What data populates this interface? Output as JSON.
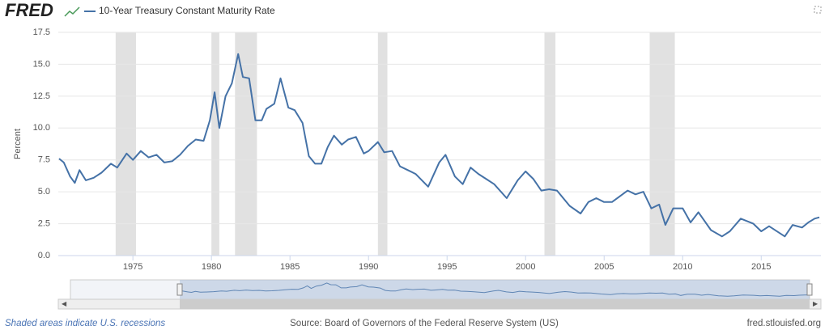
{
  "chart_data": {
    "type": "line",
    "logo": "FRED",
    "y_label": "Percent",
    "recession_note": "Shaded areas indicate U.S. recessions",
    "source": "Source: Board of Governors of the Federal Reserve System (US)",
    "site": "fred.stlouisfed.org",
    "series": [
      {
        "name": "10-Year Treasury Constant Maturity Rate",
        "color": "#4572a7",
        "x": [
          1970.3,
          1970.6,
          1971.0,
          1971.3,
          1971.6,
          1972.0,
          1972.5,
          1973.0,
          1973.6,
          1974.0,
          1974.6,
          1975.0,
          1975.5,
          1976.0,
          1976.5,
          1977.0,
          1977.5,
          1978.0,
          1978.5,
          1979.0,
          1979.5,
          1979.9,
          1980.2,
          1980.5,
          1980.9,
          1981.3,
          1981.7,
          1982.0,
          1982.4,
          1982.8,
          1983.2,
          1983.5,
          1984.0,
          1984.4,
          1984.9,
          1985.3,
          1985.8,
          1986.2,
          1986.6,
          1987.0,
          1987.4,
          1987.8,
          1988.3,
          1988.7,
          1989.2,
          1989.7,
          1990.0,
          1990.6,
          1991.0,
          1991.5,
          1992.0,
          1992.5,
          1993.0,
          1993.8,
          1994.5,
          1994.9,
          1995.5,
          1996.0,
          1996.5,
          1997.0,
          1997.5,
          1998.0,
          1998.8,
          1999.5,
          2000.0,
          2000.5,
          2001.0,
          2001.5,
          2002.0,
          2002.8,
          2003.5,
          2004.0,
          2004.5,
          2005.0,
          2005.5,
          2006.5,
          2007.0,
          2007.5,
          2008.0,
          2008.5,
          2008.9,
          2009.4,
          2010.0,
          2010.5,
          2011.0,
          2011.8,
          2012.5,
          2013.0,
          2013.7,
          2014.5,
          2015.0,
          2015.5,
          2016.5,
          2017.0,
          2017.6,
          2018.0,
          2018.4,
          2018.7
        ],
        "values": [
          7.6,
          7.3,
          6.2,
          5.7,
          6.7,
          5.9,
          6.1,
          6.5,
          7.2,
          6.9,
          8.0,
          7.5,
          8.2,
          7.7,
          7.9,
          7.3,
          7.4,
          7.9,
          8.6,
          9.1,
          9.0,
          10.6,
          12.8,
          10.0,
          12.5,
          13.5,
          15.8,
          14.0,
          13.9,
          10.6,
          10.6,
          11.5,
          11.9,
          13.9,
          11.6,
          11.4,
          10.4,
          7.8,
          7.2,
          7.2,
          8.5,
          9.4,
          8.7,
          9.1,
          9.3,
          8.0,
          8.2,
          8.9,
          8.1,
          8.2,
          7.0,
          6.7,
          6.4,
          5.4,
          7.3,
          7.9,
          6.2,
          5.6,
          6.9,
          6.4,
          6.0,
          5.6,
          4.5,
          5.9,
          6.6,
          6.0,
          5.1,
          5.2,
          5.1,
          3.9,
          3.3,
          4.2,
          4.5,
          4.2,
          4.2,
          5.1,
          4.8,
          5.0,
          3.7,
          4.0,
          2.4,
          3.7,
          3.7,
          2.6,
          3.4,
          2.0,
          1.5,
          1.9,
          2.9,
          2.5,
          1.9,
          2.3,
          1.5,
          2.4,
          2.2,
          2.6,
          2.9,
          3.0
        ]
      }
    ],
    "recessions": [
      [
        1973.9,
        1975.2
      ],
      [
        1980.0,
        1980.5
      ],
      [
        1981.5,
        1982.9
      ],
      [
        1990.6,
        1991.2
      ],
      [
        2001.2,
        2001.9
      ],
      [
        2007.9,
        2009.5
      ]
    ],
    "xlim": [
      1970.25,
      2018.8
    ],
    "xticks": [
      1975,
      1980,
      1985,
      1990,
      1995,
      2000,
      2005,
      2010,
      2015
    ],
    "ylim": [
      0,
      17.5
    ],
    "yticks": [
      {
        "value": 0,
        "label": "0.0"
      },
      2.5,
      {
        "value": 5,
        "label": "5.0"
      },
      7.5,
      {
        "value": 10,
        "label": "10.0"
      },
      12.5,
      {
        "value": 15,
        "label": "15.0"
      },
      17.5
    ],
    "grid": true
  }
}
